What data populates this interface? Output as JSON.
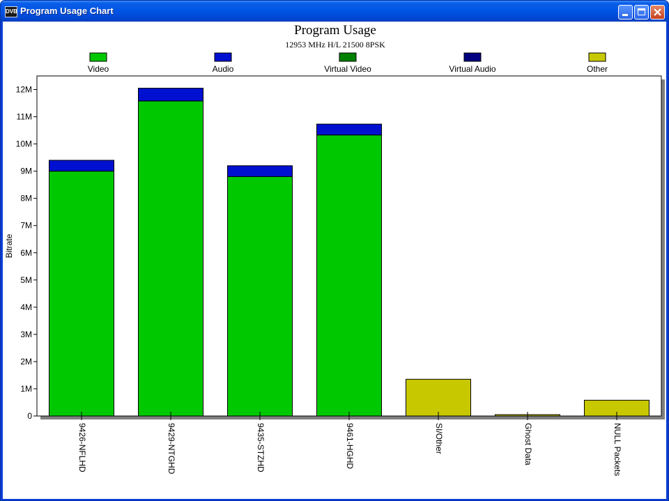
{
  "window": {
    "title": "Program Usage Chart",
    "icon_label": "DVB"
  },
  "chart_data": {
    "type": "bar",
    "stacked": true,
    "title": "Program Usage",
    "subtitle": "12953 MHz H/L 21500 8PSK",
    "ylabel": "Bitrate",
    "xlabel": "",
    "ylim": [
      0,
      12500000
    ],
    "yticks": [
      0,
      1000000,
      2000000,
      3000000,
      4000000,
      5000000,
      6000000,
      7000000,
      8000000,
      9000000,
      10000000,
      11000000,
      12000000
    ],
    "ytick_labels": [
      "0",
      "1M",
      "2M",
      "3M",
      "4M",
      "5M",
      "6M",
      "7M",
      "8M",
      "9M",
      "10M",
      "11M",
      "12M"
    ],
    "grid": false,
    "legend_position": "top",
    "categories": [
      "9426-NFLHD",
      "9429-NTGHD",
      "9435-STZHD",
      "9461-HGHD",
      "SI/Other",
      "Ghost Data",
      "NULL Packets"
    ],
    "series": [
      {
        "name": "Video",
        "color": "#00c800",
        "values": [
          9000000,
          11580000,
          8800000,
          10330000,
          0,
          0,
          0
        ]
      },
      {
        "name": "Audio",
        "color": "#0010d0",
        "values": [
          400000,
          470000,
          400000,
          400000,
          0,
          0,
          0
        ]
      },
      {
        "name": "Virtual Video",
        "color": "#008000",
        "values": [
          0,
          0,
          0,
          0,
          0,
          0,
          0
        ]
      },
      {
        "name": "Virtual Audio",
        "color": "#000080",
        "values": [
          0,
          0,
          0,
          0,
          0,
          0,
          0
        ]
      },
      {
        "name": "Other",
        "color": "#c8c800",
        "values": [
          0,
          0,
          0,
          0,
          1350000,
          50000,
          580000
        ]
      }
    ]
  }
}
